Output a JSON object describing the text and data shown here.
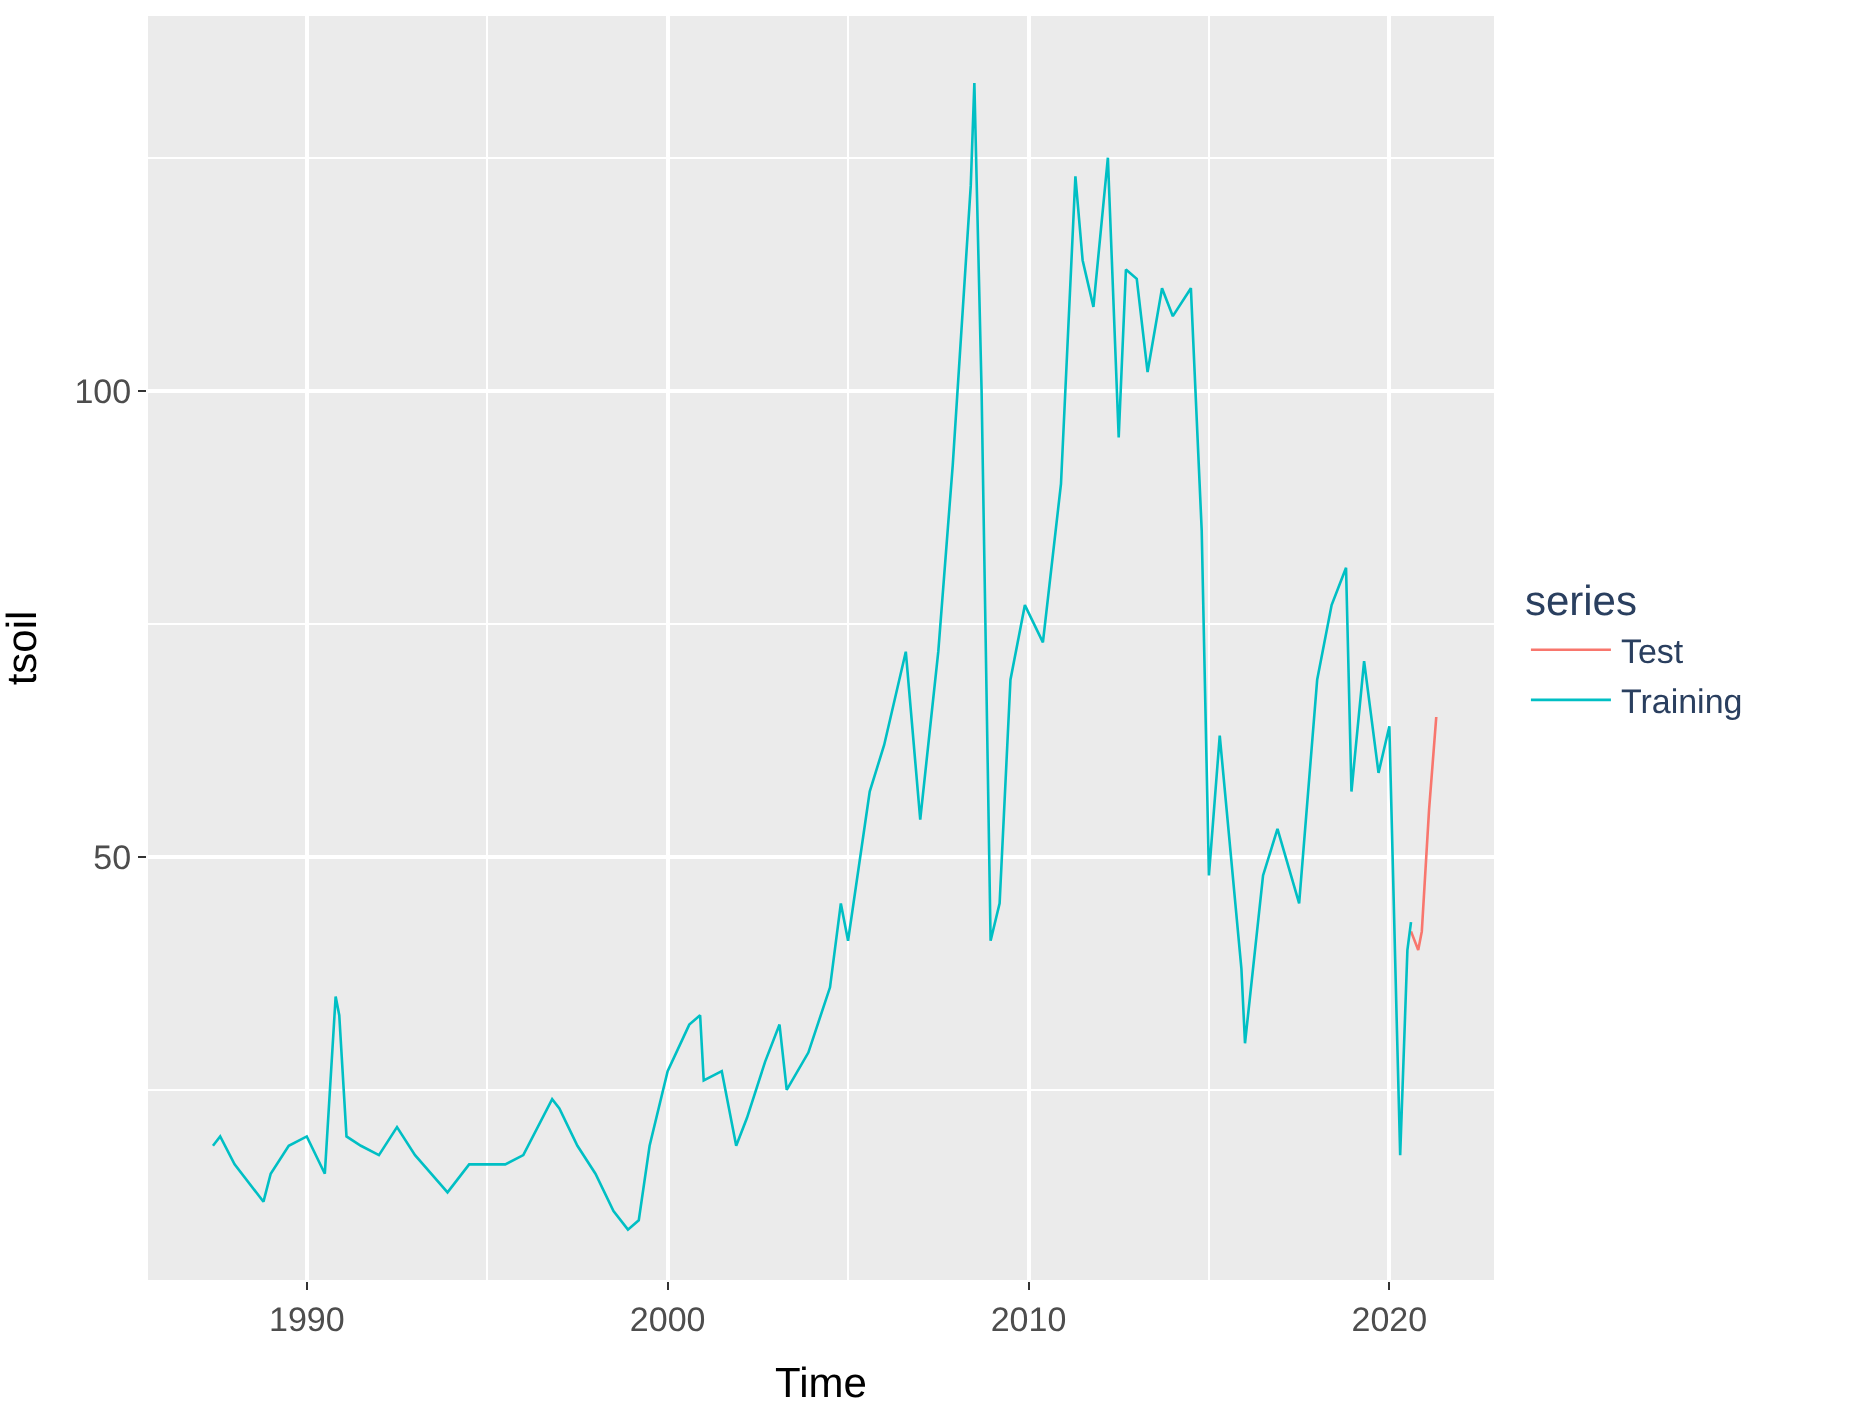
{
  "chart_data": {
    "type": "line",
    "xlabel": "Time",
    "ylabel": "tsoil",
    "legend_title": "series",
    "legend": "right",
    "grid": true,
    "xlim": [
      1985.6,
      2022.9
    ],
    "xticks": [
      1990,
      2000,
      2010,
      2020
    ],
    "ylim": [
      4.6,
      140.2
    ],
    "yticks": [
      50,
      100
    ],
    "series": [
      {
        "name": "Test",
        "color": "#f8766d",
        "x": [
          2020.6,
          2020.8,
          2020.9,
          2021.1,
          2021.3
        ],
        "values": [
          42,
          40,
          42,
          55,
          65
        ]
      },
      {
        "name": "Training",
        "color": "#00bfc4",
        "x": [
          1987.4,
          1987.6,
          1988.0,
          1988.8,
          1989.0,
          1989.5,
          1990.0,
          1990.5,
          1990.8,
          1990.9,
          1991.1,
          1991.5,
          1992.0,
          1992.5,
          1993.0,
          1993.9,
          1994.5,
          1995.0,
          1995.5,
          1996.0,
          1996.8,
          1997.0,
          1997.5,
          1998.0,
          1998.5,
          1998.9,
          1999.2,
          1999.5,
          2000.0,
          2000.6,
          2000.9,
          2001.0,
          2001.5,
          2001.9,
          2002.2,
          2002.7,
          2003.1,
          2003.3,
          2003.9,
          2004.5,
          2004.8,
          2005.0,
          2005.6,
          2006.0,
          2006.6,
          2007.0,
          2007.5,
          2007.9,
          2008.4,
          2008.5,
          2008.7,
          2008.95,
          2009.2,
          2009.5,
          2009.9,
          2010.4,
          2010.9,
          2011.3,
          2011.5,
          2011.8,
          2012.2,
          2012.5,
          2012.7,
          2013.0,
          2013.3,
          2013.7,
          2014.0,
          2014.5,
          2014.8,
          2015.0,
          2015.3,
          2015.9,
          2016.0,
          2016.5,
          2016.9,
          2017.5,
          2018.0,
          2018.4,
          2018.8,
          2018.95,
          2019.3,
          2019.7,
          2020.0,
          2020.2,
          2020.3,
          2020.5,
          2020.6
        ],
        "values": [
          19,
          20,
          17,
          13,
          16,
          19,
          20,
          16,
          35,
          33,
          20,
          19,
          18,
          21,
          18,
          14,
          17,
          17,
          17,
          18,
          24,
          23,
          19,
          16,
          12,
          10,
          11,
          19,
          27,
          32,
          33,
          26,
          27,
          19,
          22,
          28,
          32,
          25,
          29,
          36,
          45,
          41,
          57,
          62,
          72,
          54,
          72,
          92,
          122,
          133,
          100,
          41,
          45,
          69,
          77,
          73,
          90,
          123,
          114,
          109,
          125,
          95,
          113,
          112,
          102,
          111,
          108,
          111,
          85,
          48,
          63,
          38,
          30,
          48,
          53,
          45,
          69,
          77,
          81,
          57,
          71,
          59,
          64,
          33,
          18,
          40,
          43
        ]
      }
    ]
  }
}
